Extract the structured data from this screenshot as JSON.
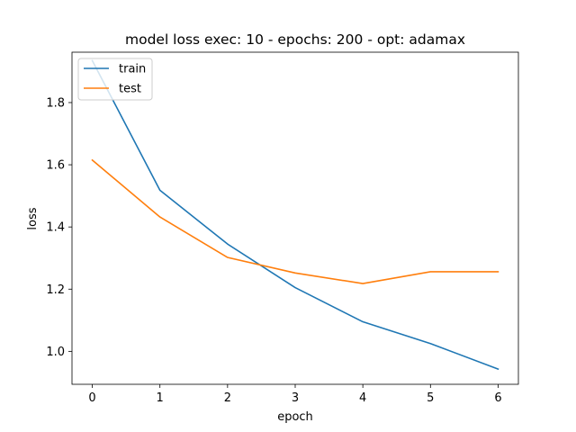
{
  "chart_data": {
    "type": "line",
    "title": "model loss exec: 10 - epochs: 200 - opt: adamax",
    "xlabel": "epoch",
    "ylabel": "loss",
    "x": [
      0,
      1,
      2,
      3,
      4,
      5,
      6
    ],
    "xticks": [
      "0",
      "1",
      "2",
      "3",
      "4",
      "5",
      "6"
    ],
    "yticks": [
      1.0,
      1.2,
      1.4,
      1.6,
      1.8
    ],
    "ytick_labels": [
      "1.0",
      "1.2",
      "1.4",
      "1.6",
      "1.8"
    ],
    "xlim": [
      -0.3,
      6.3
    ],
    "ylim": [
      0.894,
      1.962
    ],
    "grid": false,
    "legend_position": "top-left",
    "series": [
      {
        "name": "train",
        "color": "#1f77b4",
        "values": [
          1.935,
          1.518,
          1.345,
          1.205,
          1.095,
          1.025,
          0.943
        ]
      },
      {
        "name": "test",
        "color": "#ff7f0e",
        "values": [
          1.615,
          1.432,
          1.302,
          1.252,
          1.218,
          1.256,
          1.256
        ]
      }
    ]
  }
}
